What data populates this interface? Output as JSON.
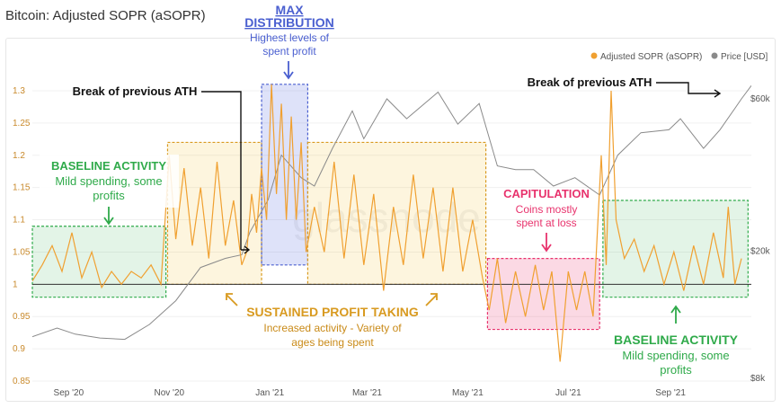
{
  "title": "Bitcoin: Adjusted SOPR (aSOPR)",
  "watermark": "glassnode",
  "legend": [
    {
      "label": "Adjusted SOPR (aSOPR)",
      "color": "#f0a030"
    },
    {
      "label": "Price [USD]",
      "color": "#8a8a8a"
    }
  ],
  "annotations": {
    "ath_left": "Break of previous ATH",
    "ath_right": "Break of previous ATH",
    "max_title_1": "MAX",
    "max_title_2": "DISTRIBUTION",
    "max_sub_1": "Highest levels of",
    "max_sub_2": "spent profit",
    "baseline_left_title": "BASELINE ACTIVITY",
    "baseline_left_sub_1": "Mild spending, some",
    "baseline_left_sub_2": "profits",
    "capitulation_title": "CAPITULATION",
    "capitulation_sub_1": "Coins mostly",
    "capitulation_sub_2": "spent at loss",
    "sustained_title": "SUSTAINED PROFIT TAKING",
    "sustained_sub_1": "Increased activity - Variety of",
    "sustained_sub_2": "ages being spent",
    "baseline_right_title": "BASELINE ACTIVITY",
    "baseline_right_sub_1": "Mild spending, some",
    "baseline_right_sub_2": "profits"
  },
  "colors": {
    "sopr": "#f0a030",
    "price": "#8a8a8a",
    "baseline": "#2faa4a",
    "max": "#4a5fd0",
    "capitulation": "#e8336d",
    "sustained": "#d89a20"
  },
  "chart_data": {
    "type": "line",
    "x_axis": {
      "type": "date",
      "range": [
        "2020-08-10",
        "2021-10-20"
      ],
      "ticks": [
        "Sep '20",
        "Nov '20",
        "Jan '21",
        "Mar '21",
        "May '21",
        "Jul '21",
        "Sep '21"
      ]
    },
    "y_left": {
      "label": "aSOPR",
      "range": [
        0.83,
        1.33
      ],
      "ticks": [
        "0.85",
        "0.9",
        "0.95",
        "1",
        "1.05",
        "1.1",
        "1.15",
        "1.2",
        "1.25",
        "1.3"
      ]
    },
    "y_right": {
      "label": "Price [USD]",
      "scale": "log",
      "range": [
        7000,
        80000
      ],
      "ticks": [
        "$8k",
        "$20k",
        "$60k"
      ]
    },
    "reference_line": 1.0,
    "series": [
      {
        "name": "Adjusted SOPR (aSOPR)",
        "axis": "left",
        "points": [
          [
            "2020-08-10",
            1.005
          ],
          [
            "2020-08-16",
            1.03
          ],
          [
            "2020-08-22",
            1.06
          ],
          [
            "2020-08-28",
            1.02
          ],
          [
            "2020-09-03",
            1.08
          ],
          [
            "2020-09-09",
            1.01
          ],
          [
            "2020-09-15",
            1.05
          ],
          [
            "2020-09-21",
            0.995
          ],
          [
            "2020-09-27",
            1.02
          ],
          [
            "2020-10-03",
            1.0
          ],
          [
            "2020-10-09",
            1.02
          ],
          [
            "2020-10-15",
            1.01
          ],
          [
            "2020-10-21",
            1.03
          ],
          [
            "2020-10-27",
            1.0
          ],
          [
            "2020-11-01",
            1.2
          ],
          [
            "2020-11-05",
            1.07
          ],
          [
            "2020-11-10",
            1.18
          ],
          [
            "2020-11-15",
            1.06
          ],
          [
            "2020-11-20",
            1.15
          ],
          [
            "2020-11-25",
            1.04
          ],
          [
            "2020-11-30",
            1.19
          ],
          [
            "2020-12-05",
            1.06
          ],
          [
            "2020-12-10",
            1.13
          ],
          [
            "2020-12-15",
            1.03
          ],
          [
            "2020-12-18",
            1.05
          ],
          [
            "2020-12-21",
            1.14
          ],
          [
            "2020-12-24",
            1.08
          ],
          [
            "2020-12-27",
            1.18
          ],
          [
            "2020-12-30",
            1.1
          ],
          [
            "2021-01-02",
            1.31
          ],
          [
            "2021-01-05",
            1.14
          ],
          [
            "2021-01-08",
            1.28
          ],
          [
            "2021-01-11",
            1.1
          ],
          [
            "2021-01-14",
            1.26
          ],
          [
            "2021-01-17",
            1.1
          ],
          [
            "2021-01-20",
            1.22
          ],
          [
            "2021-01-23",
            1.05
          ],
          [
            "2021-01-28",
            1.12
          ],
          [
            "2021-02-03",
            1.05
          ],
          [
            "2021-02-09",
            1.19
          ],
          [
            "2021-02-15",
            1.04
          ],
          [
            "2021-02-21",
            1.17
          ],
          [
            "2021-02-27",
            1.03
          ],
          [
            "2021-03-05",
            1.14
          ],
          [
            "2021-03-11",
            0.99
          ],
          [
            "2021-03-17",
            1.12
          ],
          [
            "2021-03-23",
            1.03
          ],
          [
            "2021-03-29",
            1.17
          ],
          [
            "2021-04-04",
            1.04
          ],
          [
            "2021-04-10",
            1.15
          ],
          [
            "2021-04-16",
            1.02
          ],
          [
            "2021-04-22",
            1.15
          ],
          [
            "2021-04-28",
            1.02
          ],
          [
            "2021-05-04",
            1.1
          ],
          [
            "2021-05-10",
            1.01
          ],
          [
            "2021-05-14",
            0.96
          ],
          [
            "2021-05-19",
            1.04
          ],
          [
            "2021-05-24",
            0.94
          ],
          [
            "2021-05-30",
            1.02
          ],
          [
            "2021-06-05",
            0.95
          ],
          [
            "2021-06-11",
            1.03
          ],
          [
            "2021-06-16",
            0.96
          ],
          [
            "2021-06-21",
            1.02
          ],
          [
            "2021-06-26",
            0.88
          ],
          [
            "2021-07-01",
            1.02
          ],
          [
            "2021-07-06",
            0.96
          ],
          [
            "2021-07-11",
            1.02
          ],
          [
            "2021-07-16",
            0.95
          ],
          [
            "2021-07-21",
            1.2
          ],
          [
            "2021-07-24",
            1.03
          ],
          [
            "2021-07-27",
            1.3
          ],
          [
            "2021-07-30",
            1.1
          ],
          [
            "2021-08-04",
            1.04
          ],
          [
            "2021-08-10",
            1.07
          ],
          [
            "2021-08-16",
            1.02
          ],
          [
            "2021-08-22",
            1.06
          ],
          [
            "2021-08-28",
            1.0
          ],
          [
            "2021-09-03",
            1.05
          ],
          [
            "2021-09-09",
            0.99
          ],
          [
            "2021-09-15",
            1.06
          ],
          [
            "2021-09-21",
            1.0
          ],
          [
            "2021-09-27",
            1.08
          ],
          [
            "2021-10-03",
            1.01
          ],
          [
            "2021-10-06",
            1.12
          ],
          [
            "2021-10-10",
            1.0
          ],
          [
            "2021-10-14",
            1.04
          ]
        ]
      },
      {
        "name": "Price [USD]",
        "axis": "right",
        "points": [
          [
            "2020-08-10",
            10800
          ],
          [
            "2020-08-25",
            11500
          ],
          [
            "2020-09-05",
            11000
          ],
          [
            "2020-09-20",
            10700
          ],
          [
            "2020-10-05",
            10600
          ],
          [
            "2020-10-20",
            11800
          ],
          [
            "2020-11-05",
            14000
          ],
          [
            "2020-11-20",
            17800
          ],
          [
            "2020-12-05",
            19000
          ],
          [
            "2020-12-15",
            19500
          ],
          [
            "2020-12-20",
            23000
          ],
          [
            "2020-12-31",
            29000
          ],
          [
            "2021-01-08",
            40000
          ],
          [
            "2021-01-20",
            34000
          ],
          [
            "2021-01-28",
            32000
          ],
          [
            "2021-02-08",
            42000
          ],
          [
            "2021-02-20",
            55000
          ],
          [
            "2021-02-27",
            45000
          ],
          [
            "2021-03-13",
            60000
          ],
          [
            "2021-03-25",
            52000
          ],
          [
            "2021-04-13",
            63000
          ],
          [
            "2021-04-25",
            50000
          ],
          [
            "2021-05-08",
            58000
          ],
          [
            "2021-05-19",
            37000
          ],
          [
            "2021-05-30",
            36000
          ],
          [
            "2021-06-10",
            36000
          ],
          [
            "2021-06-22",
            32000
          ],
          [
            "2021-07-05",
            34000
          ],
          [
            "2021-07-20",
            30000
          ],
          [
            "2021-07-31",
            40000
          ],
          [
            "2021-08-14",
            47000
          ],
          [
            "2021-08-31",
            48000
          ],
          [
            "2021-09-07",
            52000
          ],
          [
            "2021-09-21",
            42000
          ],
          [
            "2021-10-01",
            48000
          ],
          [
            "2021-10-10",
            56000
          ],
          [
            "2021-10-14",
            60000
          ],
          [
            "2021-10-20",
            66000
          ]
        ]
      }
    ],
    "regions": [
      {
        "label": "BASELINE ACTIVITY",
        "start": "2020-08-10",
        "end": "2020-10-30",
        "y": [
          0.98,
          1.09
        ]
      },
      {
        "label": "SUSTAINED PROFIT TAKING",
        "start": "2020-10-31",
        "end": "2020-12-27",
        "y": [
          1.0,
          1.22
        ]
      },
      {
        "label": "MAX DISTRIBUTION",
        "start": "2020-12-27",
        "end": "2021-01-24",
        "y": [
          1.03,
          1.31
        ]
      },
      {
        "label": "SUSTAINED PROFIT TAKING",
        "start": "2021-01-24",
        "end": "2021-05-12",
        "y": [
          1.0,
          1.22
        ]
      },
      {
        "label": "CAPITULATION",
        "start": "2021-05-13",
        "end": "2021-07-20",
        "y": [
          0.93,
          1.04
        ]
      },
      {
        "label": "BASELINE ACTIVITY",
        "start": "2021-07-22",
        "end": "2021-10-18",
        "y": [
          0.98,
          1.13
        ]
      }
    ]
  }
}
